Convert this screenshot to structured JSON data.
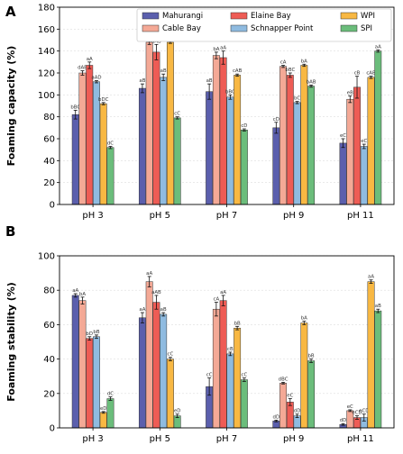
{
  "chart_data": {
    "legend": [
      {
        "name": "Mahurangi",
        "color": "#5b5fad"
      },
      {
        "name": "Cable Bay",
        "color": "#f4a996"
      },
      {
        "name": "Elaine Bay",
        "color": "#ee5c55"
      },
      {
        "name": "Schnapper Point",
        "color": "#8fbbe0"
      },
      {
        "name": "WPI",
        "color": "#f8b843"
      },
      {
        "name": "SPI",
        "color": "#6bbd7b"
      }
    ],
    "panels": [
      {
        "letter": "A",
        "type": "bar",
        "ylabel": "Foaming capacity (%)",
        "ylim": [
          0,
          180
        ],
        "yticks": [
          "0",
          "20",
          "40",
          "60",
          "80",
          "100",
          "120",
          "140",
          "160",
          "180"
        ],
        "categories": [
          "pH 3",
          "pH 5",
          "pH 7",
          "pH 9",
          "pH 11"
        ],
        "series": [
          {
            "name": "Mahurangi",
            "values": [
              82,
              106,
              103,
              70,
              56
            ],
            "errors": [
              4,
              4,
              7,
              5,
              4
            ],
            "labels": [
              "bBC",
              "aB",
              "aB",
              "cD",
              "eC"
            ]
          },
          {
            "name": "Cable Bay",
            "values": [
              120,
              148,
              136,
              126,
              96
            ],
            "errors": [
              2,
              2,
              3,
              1,
              3
            ],
            "labels": [
              "dAB",
              "aA",
              "bA",
              "cA",
              "eB"
            ]
          },
          {
            "name": "Elaine Bay",
            "values": [
              127,
              139,
              134,
              118,
              107
            ],
            "errors": [
              3,
              7,
              6,
              2,
              10
            ],
            "labels": [
              "aA",
              "aAB",
              "aA",
              "bBC",
              "cB"
            ]
          },
          {
            "name": "Schnapper Point",
            "values": [
              112,
              116,
              98,
              93,
              53
            ],
            "errors": [
              1,
              3,
              2,
              1,
              2
            ],
            "labels": [
              "aAD",
              "aB",
              "bBC",
              "bC",
              "eC"
            ]
          },
          {
            "name": "WPI",
            "values": [
              92,
              148,
              118,
              127,
              116
            ],
            "errors": [
              1,
              1,
              1,
              1,
              1
            ],
            "labels": [
              "bDC",
              "",
              "cAB",
              "bA",
              "cAB"
            ]
          },
          {
            "name": "SPI",
            "values": [
              52,
              79,
              68,
              108,
              140
            ],
            "errors": [
              1,
              1,
              1,
              1,
              1
            ],
            "labels": [
              "dC",
              "cC",
              "cD",
              "bAB",
              "aA"
            ]
          }
        ]
      },
      {
        "letter": "B",
        "type": "bar",
        "ylabel": "Foaming stability (%)",
        "ylim": [
          0,
          100
        ],
        "yticks": [
          "0",
          "20",
          "40",
          "60",
          "80",
          "100"
        ],
        "categories": [
          "pH 3",
          "pH 5",
          "pH 7",
          "pH 9",
          "pH 11"
        ],
        "series": [
          {
            "name": "Mahurangi",
            "values": [
              77,
              64,
              24,
              4,
              2
            ],
            "errors": [
              1,
              3,
              5,
              0.5,
              0.5
            ],
            "labels": [
              "aA",
              "aA",
              "cC",
              "dD",
              "dD"
            ]
          },
          {
            "name": "Cable Bay",
            "values": [
              74,
              85,
              69,
              26,
              10
            ],
            "errors": [
              2,
              3,
              4,
              0.5,
              0.5
            ],
            "labels": [
              "bA",
              "aA",
              "cA",
              "dBC",
              "eC"
            ]
          },
          {
            "name": "Elaine Bay",
            "values": [
              52,
              73,
              74,
              15,
              6
            ],
            "errors": [
              1,
              4,
              3,
              2,
              1
            ],
            "labels": [
              "bD",
              "aAB",
              "aA",
              "eC",
              "eCD"
            ]
          },
          {
            "name": "Schnapper Point",
            "values": [
              53,
              66,
              43,
              7,
              6
            ],
            "errors": [
              1,
              1,
              1,
              1,
              2
            ],
            "labels": [
              "bB",
              "aB",
              "cB",
              "dD",
              "eCD"
            ]
          },
          {
            "name": "WPI",
            "values": [
              9,
              40,
              58,
              61,
              85
            ],
            "errors": [
              0.5,
              1,
              1,
              1,
              1
            ],
            "labels": [
              "eD",
              "cC",
              "bB",
              "bA",
              "aA"
            ]
          },
          {
            "name": "SPI",
            "values": [
              17,
              7,
              28,
              39,
              68
            ],
            "errors": [
              1,
              1,
              1,
              1,
              1
            ],
            "labels": [
              "dC",
              "eD",
              "cC",
              "bB",
              "aB"
            ]
          }
        ]
      }
    ]
  }
}
